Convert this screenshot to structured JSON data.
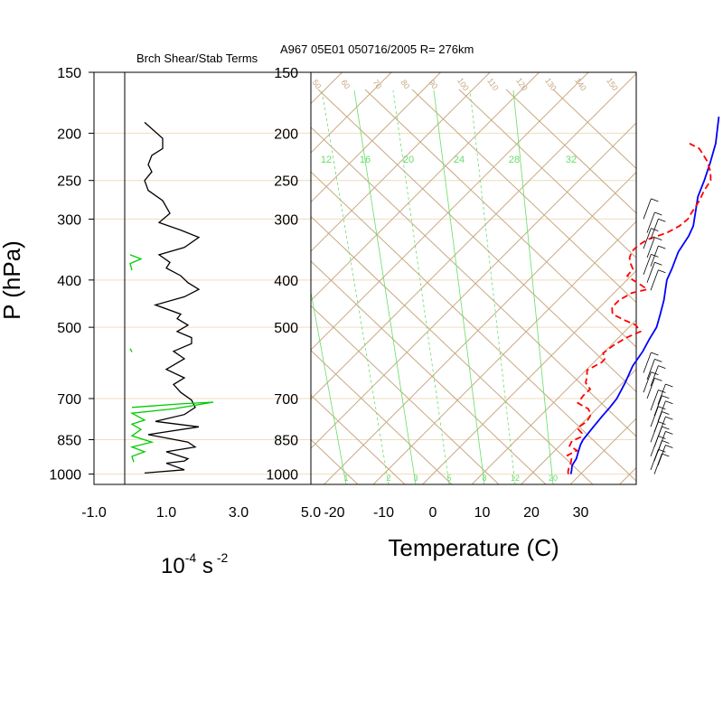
{
  "header": {
    "left_title": "Brch Shear/Stab Terms",
    "right_title": "A967 05E01 050716/2005 R= 276km"
  },
  "axes": {
    "y_label": "P (hPa)",
    "x_label_right": "Temperature (C)",
    "x_label_left_base": "10",
    "x_label_left_exp1": "-4",
    "x_label_left_unit": " s",
    "x_label_left_exp2": "-2"
  },
  "colors": {
    "frame": "#000000",
    "skew_lines": "#c8a882",
    "grid_pressure": "#f0dcc0",
    "mixing_ratio": "#66dd66",
    "temperature": "#0000ff",
    "dewpoint": "#ff0000",
    "stab_term": "#000000",
    "shear_term": "#00cc00",
    "wind_barbs": "#000000"
  },
  "chart_data": [
    {
      "type": "line",
      "panel": "left",
      "title": "Brch Shear/Stab Terms",
      "xlabel": "10^-4 s^-2",
      "ylabel": "P (hPa)",
      "xlim": [
        -1.0,
        5.0
      ],
      "ylim": [
        1050,
        150
      ],
      "y_scale": "log",
      "x_ticks": [
        "-1.0",
        "1.0",
        "3.0",
        "5.0"
      ],
      "y_ticks": [
        "150",
        "200",
        "250",
        "300",
        "400",
        "500",
        "700",
        "850",
        "1000"
      ],
      "series": [
        {
          "color": "#000000",
          "points": [
            [
              0.4,
              190
            ],
            [
              0.9,
              205
            ],
            [
              0.9,
              215
            ],
            [
              0.6,
              222
            ],
            [
              0.5,
              232
            ],
            [
              0.6,
              240
            ],
            [
              0.4,
              250
            ],
            [
              0.5,
              262
            ],
            [
              0.9,
              275
            ],
            [
              1.1,
              292
            ],
            [
              0.8,
              305
            ],
            [
              1.4,
              316
            ],
            [
              1.9,
              327
            ],
            [
              1.5,
              343
            ],
            [
              0.8,
              355
            ],
            [
              1.1,
              368
            ],
            [
              1.0,
              378
            ],
            [
              1.4,
              392
            ],
            [
              1.6,
              405
            ],
            [
              1.9,
              418
            ],
            [
              1.5,
              433
            ],
            [
              0.7,
              450
            ],
            [
              1.4,
              470
            ],
            [
              1.3,
              480
            ],
            [
              1.6,
              495
            ],
            [
              1.3,
              510
            ],
            [
              1.7,
              525
            ],
            [
              1.7,
              540
            ],
            [
              1.2,
              560
            ],
            [
              1.5,
              580
            ],
            [
              1.0,
              610
            ],
            [
              1.5,
              635
            ],
            [
              1.2,
              655
            ],
            [
              1.4,
              680
            ],
            [
              1.7,
              705
            ],
            [
              1.8,
              730
            ],
            [
              1.5,
              755
            ],
            [
              0.7,
              780
            ],
            [
              1.9,
              800
            ],
            [
              0.5,
              830
            ],
            [
              1.6,
              860
            ],
            [
              1.8,
              880
            ],
            [
              1.0,
              900
            ],
            [
              1.6,
              930
            ],
            [
              1.5,
              940
            ],
            [
              1.0,
              950
            ],
            [
              1.5,
              980
            ],
            [
              0.4,
              995
            ]
          ]
        },
        {
          "color": "#00cc00",
          "points": [
            [
              0.05,
              730
            ],
            [
              0.6,
              725
            ],
            [
              1.4,
              718
            ],
            [
              2.3,
              712
            ],
            [
              1.2,
              735
            ],
            [
              0.05,
              750
            ],
            [
              0.4,
              775
            ],
            [
              0.05,
              790
            ],
            [
              0.3,
              810
            ],
            [
              0.05,
              835
            ],
            [
              0.6,
              860
            ],
            [
              0.05,
              880
            ],
            [
              0.4,
              900
            ],
            [
              0.05,
              920
            ],
            [
              0.1,
              945
            ]
          ]
        },
        {
          "color": "#00cc00",
          "points": [
            [
              0.0,
              355
            ],
            [
              0.3,
              362
            ],
            [
              0.0,
              370
            ],
            [
              0.05,
              382
            ]
          ]
        },
        {
          "color": "#00cc00",
          "points": [
            [
              0.0,
              553
            ],
            [
              0.05,
              562
            ]
          ]
        }
      ]
    },
    {
      "type": "line",
      "panel": "right",
      "title": "A967 05E01 050716/2005 R= 276km",
      "xlabel": "Temperature (C)",
      "xlim": [
        -23,
        40
      ],
      "ylim": [
        1050,
        150
      ],
      "y_scale": "log",
      "skew": "skew-T",
      "x_ticks": [
        "-20",
        "-10",
        "0",
        "10",
        "20",
        "30"
      ],
      "y_ticks": [
        "150",
        "200",
        "250",
        "300",
        "400",
        "500",
        "700",
        "850",
        "1000"
      ],
      "mixing_ratio_labels_bottom": [
        "1",
        "2",
        "3",
        "5",
        "8",
        "12",
        "20"
      ],
      "mixing_ratio_labels_top": [
        "12",
        "16",
        "20",
        "24",
        "28",
        "32"
      ],
      "dry_adiabat_labels": [
        "50",
        "60",
        "70",
        "80",
        "90",
        "100",
        "110",
        "120",
        "130",
        "140",
        "150"
      ],
      "series": [
        {
          "name": "Temperature",
          "color": "#0000ff",
          "dash": "solid",
          "points": [
            [
              28.0,
              1000
            ],
            [
              27.5,
              985
            ],
            [
              26.5,
              960
            ],
            [
              26.0,
              930
            ],
            [
              25.0,
              900
            ],
            [
              24.0,
              870
            ],
            [
              23.5,
              850
            ],
            [
              23.0,
              800
            ],
            [
              22.6,
              760
            ],
            [
              22.4,
              730
            ],
            [
              22.0,
              700
            ],
            [
              20.5,
              650
            ],
            [
              18.6,
              600
            ],
            [
              17.7,
              560
            ],
            [
              16.6,
              530
            ],
            [
              15.6,
              500
            ],
            [
              13.7,
              470
            ],
            [
              11.6,
              440
            ],
            [
              9.9,
              420
            ],
            [
              8.1,
              400
            ],
            [
              6.9,
              380
            ],
            [
              4.7,
              350
            ],
            [
              3.6,
              325
            ],
            [
              2.5,
              310
            ],
            [
              0.1,
              290
            ],
            [
              -2.5,
              270
            ],
            [
              -4.5,
              250
            ],
            [
              -6.9,
              230
            ],
            [
              -9.7,
              210
            ],
            [
              -14.5,
              185
            ]
          ]
        },
        {
          "name": "Dewpoint",
          "color": "#ff0000",
          "dash": "dashed",
          "points": [
            [
              27.5,
              1000
            ],
            [
              27.0,
              990
            ],
            [
              26.3,
              970
            ],
            [
              25.8,
              950
            ],
            [
              25.0,
              930
            ],
            [
              23.5,
              915
            ],
            [
              24.5,
              895
            ],
            [
              22.0,
              875
            ],
            [
              21.5,
              855
            ],
            [
              22.5,
              840
            ],
            [
              22.0,
              825
            ],
            [
              20.0,
              805
            ],
            [
              20.6,
              780
            ],
            [
              20.0,
              755
            ],
            [
              18.3,
              735
            ],
            [
              15.0,
              715
            ],
            [
              14.6,
              690
            ],
            [
              14.7,
              670
            ],
            [
              12.5,
              650
            ],
            [
              11.4,
              630
            ],
            [
              10.2,
              612
            ],
            [
              11.6,
              590
            ],
            [
              11.5,
              580
            ],
            [
              10.0,
              565
            ],
            [
              10.5,
              545
            ],
            [
              11.6,
              525
            ],
            [
              13.2,
              510
            ],
            [
              11.0,
              495
            ],
            [
              8.1,
              485
            ],
            [
              4.0,
              470
            ],
            [
              2.5,
              455
            ],
            [
              2.5,
              440
            ],
            [
              3.6,
              425
            ],
            [
              6.0,
              418
            ],
            [
              4.0,
              410
            ],
            [
              1.2,
              400
            ],
            [
              -0.8,
              392
            ],
            [
              -1.0,
              380
            ],
            [
              -2.6,
              370
            ],
            [
              -4.0,
              360
            ],
            [
              -4.8,
              350
            ],
            [
              -4.8,
              340
            ],
            [
              -4.0,
              330
            ],
            [
              -1.5,
              320
            ],
            [
              -0.3,
              310
            ],
            [
              0.0,
              300
            ],
            [
              -0.6,
              290
            ],
            [
              -1.4,
              275
            ],
            [
              -2.5,
              262
            ],
            [
              -3.2,
              250
            ],
            [
              -5.0,
              240
            ],
            [
              -7.9,
              228
            ],
            [
              -12.0,
              215
            ],
            [
              -15.0,
              210
            ]
          ]
        }
      ]
    }
  ]
}
